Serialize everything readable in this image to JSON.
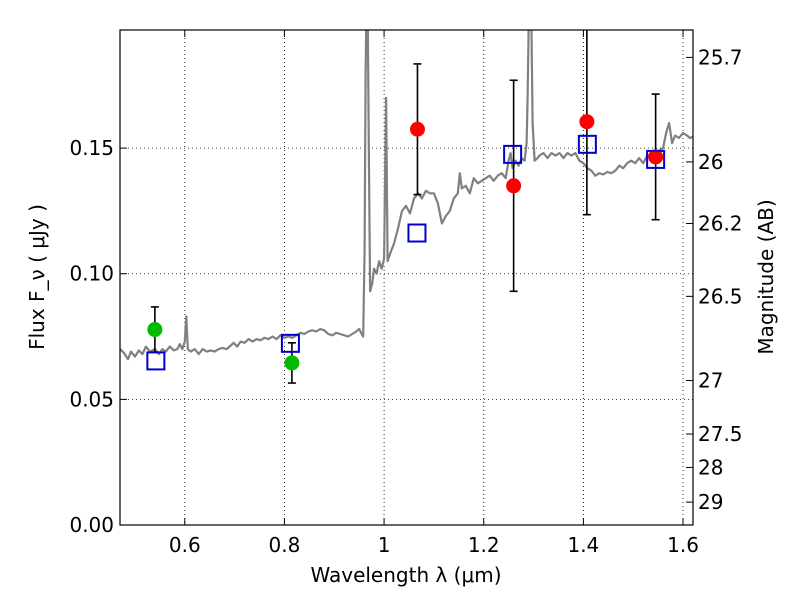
{
  "chart_data": {
    "type": "scatter",
    "xlabel": "Wavelength  λ (μm)",
    "ylabel": "Flux  F_ν  ( μJy )",
    "y2label": "Magnitude (AB)",
    "xlim": [
      0.47,
      1.62
    ],
    "ylim": [
      0.0,
      0.197
    ],
    "grid": true,
    "x_ticks": [
      {
        "value": 0.6,
        "label": "0.6"
      },
      {
        "value": 0.8,
        "label": "0.8"
      },
      {
        "value": 1.0,
        "label": "1"
      },
      {
        "value": 1.2,
        "label": "1.2"
      },
      {
        "value": 1.4,
        "label": "1.4"
      },
      {
        "value": 1.6,
        "label": "1.6"
      }
    ],
    "y_ticks": [
      {
        "value": 0.0,
        "label": "0.00"
      },
      {
        "value": 0.05,
        "label": "0.05"
      },
      {
        "value": 0.1,
        "label": "0.10"
      },
      {
        "value": 0.15,
        "label": "0.15"
      }
    ],
    "y2_ticks": [
      {
        "flux": 0.1861,
        "label": "25.7"
      },
      {
        "flux": 0.1445,
        "label": "26"
      },
      {
        "flux": 0.12,
        "label": "26.2"
      },
      {
        "flux": 0.091,
        "label": "26.5"
      },
      {
        "flux": 0.0575,
        "label": "27"
      },
      {
        "flux": 0.0362,
        "label": "27.5"
      },
      {
        "flux": 0.0229,
        "label": "28"
      },
      {
        "flux": 0.0091,
        "label": "29"
      }
    ],
    "model_sed": {
      "name": "",
      "color": "#808080",
      "points": [
        [
          0.47,
          0.07
        ],
        [
          0.478,
          0.0685
        ],
        [
          0.486,
          0.066
        ],
        [
          0.492,
          0.069
        ],
        [
          0.5,
          0.067
        ],
        [
          0.508,
          0.0695
        ],
        [
          0.515,
          0.068
        ],
        [
          0.522,
          0.071
        ],
        [
          0.53,
          0.069
        ],
        [
          0.54,
          0.07
        ],
        [
          0.548,
          0.068
        ],
        [
          0.555,
          0.07
        ],
        [
          0.562,
          0.069
        ],
        [
          0.57,
          0.071
        ],
        [
          0.578,
          0.0695
        ],
        [
          0.585,
          0.07
        ],
        [
          0.59,
          0.072
        ],
        [
          0.595,
          0.07
        ],
        [
          0.6,
          0.073
        ],
        [
          0.603,
          0.083
        ],
        [
          0.606,
          0.07
        ],
        [
          0.612,
          0.069
        ],
        [
          0.62,
          0.07
        ],
        [
          0.628,
          0.068
        ],
        [
          0.636,
          0.07
        ],
        [
          0.644,
          0.069
        ],
        [
          0.652,
          0.0695
        ],
        [
          0.66,
          0.069
        ],
        [
          0.668,
          0.07
        ],
        [
          0.676,
          0.0705
        ],
        [
          0.684,
          0.07
        ],
        [
          0.69,
          0.071
        ],
        [
          0.698,
          0.0725
        ],
        [
          0.705,
          0.071
        ],
        [
          0.712,
          0.073
        ],
        [
          0.72,
          0.0725
        ],
        [
          0.728,
          0.074
        ],
        [
          0.736,
          0.073
        ],
        [
          0.744,
          0.074
        ],
        [
          0.752,
          0.0735
        ],
        [
          0.76,
          0.0745
        ],
        [
          0.768,
          0.074
        ],
        [
          0.776,
          0.075
        ],
        [
          0.784,
          0.074
        ],
        [
          0.792,
          0.0755
        ],
        [
          0.8,
          0.0745
        ],
        [
          0.808,
          0.075
        ],
        [
          0.816,
          0.0745
        ],
        [
          0.824,
          0.0755
        ],
        [
          0.832,
          0.0765
        ],
        [
          0.84,
          0.076
        ],
        [
          0.848,
          0.077
        ],
        [
          0.856,
          0.0775
        ],
        [
          0.864,
          0.077
        ],
        [
          0.872,
          0.078
        ],
        [
          0.88,
          0.0775
        ],
        [
          0.888,
          0.076
        ],
        [
          0.896,
          0.0755
        ],
        [
          0.904,
          0.0765
        ],
        [
          0.912,
          0.076
        ],
        [
          0.92,
          0.0755
        ],
        [
          0.928,
          0.075
        ],
        [
          0.936,
          0.076
        ],
        [
          0.944,
          0.077
        ],
        [
          0.95,
          0.078
        ],
        [
          0.955,
          0.076
        ],
        [
          0.958,
          0.075
        ],
        [
          0.961,
          0.11
        ],
        [
          0.963,
          0.18
        ],
        [
          0.965,
          0.21
        ],
        [
          0.967,
          0.21
        ],
        [
          0.969,
          0.16
        ],
        [
          0.972,
          0.093
        ],
        [
          0.976,
          0.096
        ],
        [
          0.98,
          0.102
        ],
        [
          0.985,
          0.1
        ],
        [
          0.99,
          0.105
        ],
        [
          0.995,
          0.102
        ],
        [
          1.0,
          0.106
        ],
        [
          1.004,
          0.17
        ],
        [
          1.007,
          0.105
        ],
        [
          1.012,
          0.108
        ],
        [
          1.02,
          0.112
        ],
        [
          1.028,
          0.118
        ],
        [
          1.036,
          0.125
        ],
        [
          1.044,
          0.127
        ],
        [
          1.052,
          0.124
        ],
        [
          1.06,
          0.13
        ],
        [
          1.068,
          0.132
        ],
        [
          1.076,
          0.13
        ],
        [
          1.084,
          0.133
        ],
        [
          1.092,
          0.132
        ],
        [
          1.1,
          0.132
        ],
        [
          1.108,
          0.128
        ],
        [
          1.116,
          0.12
        ],
        [
          1.124,
          0.123
        ],
        [
          1.132,
          0.125
        ],
        [
          1.14,
          0.13
        ],
        [
          1.148,
          0.132
        ],
        [
          1.152,
          0.14
        ],
        [
          1.156,
          0.134
        ],
        [
          1.164,
          0.135
        ],
        [
          1.172,
          0.132
        ],
        [
          1.18,
          0.138
        ],
        [
          1.188,
          0.136
        ],
        [
          1.196,
          0.137
        ],
        [
          1.204,
          0.138
        ],
        [
          1.212,
          0.139
        ],
        [
          1.22,
          0.137
        ],
        [
          1.228,
          0.139
        ],
        [
          1.236,
          0.14
        ],
        [
          1.244,
          0.138
        ],
        [
          1.25,
          0.145
        ],
        [
          1.254,
          0.148
        ],
        [
          1.258,
          0.142
        ],
        [
          1.264,
          0.145
        ],
        [
          1.27,
          0.143
        ],
        [
          1.276,
          0.146
        ],
        [
          1.282,
          0.145
        ],
        [
          1.286,
          0.152
        ],
        [
          1.288,
          0.17
        ],
        [
          1.291,
          0.21
        ],
        [
          1.295,
          0.21
        ],
        [
          1.298,
          0.16
        ],
        [
          1.302,
          0.145
        ],
        [
          1.308,
          0.146
        ],
        [
          1.312,
          0.147
        ],
        [
          1.32,
          0.148
        ],
        [
          1.328,
          0.146
        ],
        [
          1.336,
          0.148
        ],
        [
          1.344,
          0.147
        ],
        [
          1.352,
          0.148
        ],
        [
          1.36,
          0.146
        ],
        [
          1.368,
          0.148
        ],
        [
          1.376,
          0.147
        ],
        [
          1.384,
          0.148
        ],
        [
          1.392,
          0.145
        ],
        [
          1.4,
          0.144
        ],
        [
          1.408,
          0.142
        ],
        [
          1.416,
          0.141
        ],
        [
          1.424,
          0.139
        ],
        [
          1.432,
          0.14
        ],
        [
          1.44,
          0.1395
        ],
        [
          1.448,
          0.1405
        ],
        [
          1.456,
          0.14
        ],
        [
          1.464,
          0.141
        ],
        [
          1.472,
          0.143
        ],
        [
          1.48,
          0.142
        ],
        [
          1.488,
          0.144
        ],
        [
          1.496,
          0.145
        ],
        [
          1.504,
          0.144
        ],
        [
          1.512,
          0.146
        ],
        [
          1.52,
          0.144
        ],
        [
          1.528,
          0.147
        ],
        [
          1.536,
          0.146
        ],
        [
          1.544,
          0.148
        ],
        [
          1.552,
          0.149
        ],
        [
          1.56,
          0.15
        ],
        [
          1.566,
          0.156
        ],
        [
          1.572,
          0.16
        ],
        [
          1.578,
          0.152
        ],
        [
          1.584,
          0.155
        ],
        [
          1.592,
          0.154
        ],
        [
          1.6,
          0.156
        ],
        [
          1.608,
          0.155
        ],
        [
          1.614,
          0.154
        ],
        [
          1.62,
          0.1545
        ]
      ]
    },
    "series": [
      {
        "name": "",
        "marker": "circle",
        "color": "#00bb00",
        "points": [
          {
            "x": 0.54,
            "y": 0.0778,
            "err": 0.009
          },
          {
            "x": 0.815,
            "y": 0.0645,
            "err": 0.008
          }
        ]
      },
      {
        "name": "",
        "marker": "circle",
        "color": "#ff0000",
        "points": [
          {
            "x": 1.067,
            "y": 0.1575,
            "err": 0.026
          },
          {
            "x": 1.26,
            "y": 0.135,
            "err": 0.042
          },
          {
            "x": 1.407,
            "y": 0.1605,
            "err": 0.037
          },
          {
            "x": 1.545,
            "y": 0.1465,
            "err": 0.025
          }
        ]
      },
      {
        "name": "",
        "marker": "square",
        "color": "#0000cc",
        "points": [
          {
            "x": 0.542,
            "y": 0.0653
          },
          {
            "x": 0.812,
            "y": 0.0723
          },
          {
            "x": 1.066,
            "y": 0.1162
          },
          {
            "x": 1.258,
            "y": 0.1475
          },
          {
            "x": 1.408,
            "y": 0.1515
          },
          {
            "x": 1.545,
            "y": 0.1455
          }
        ]
      }
    ]
  }
}
